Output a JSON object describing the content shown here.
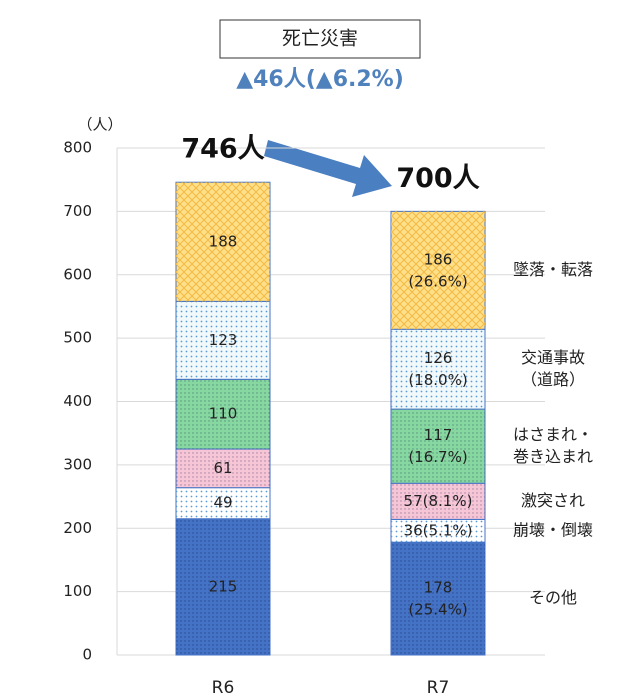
{
  "chart_data": {
    "type": "stacked_bar",
    "title": "死亡災害",
    "subtitle": "▲46人(▲6.2%)",
    "y_axis_label": "（人）",
    "categories": [
      "R6",
      "R7"
    ],
    "ylim": [
      0,
      800
    ],
    "yticks": [
      0,
      100,
      200,
      300,
      400,
      500,
      600,
      700,
      800
    ],
    "grid": true,
    "series": [
      {
        "name": "その他",
        "color": "#4472c4",
        "values": [
          215,
          178
        ],
        "value_labels": [
          "215",
          "178\n(25.4%)"
        ]
      },
      {
        "name": "崩壊・倒壊",
        "color": "#ffffff",
        "values": [
          49,
          36
        ],
        "value_labels": [
          "49",
          "36(5.1%)"
        ]
      },
      {
        "name": "激突され",
        "color": "#f7c6d6",
        "values": [
          61,
          57
        ],
        "value_labels": [
          "61",
          "57(8.1%)"
        ]
      },
      {
        "name": "はさまれ・\n巻き込まれ",
        "color": "#86d8a0",
        "values": [
          110,
          117
        ],
        "value_labels": [
          "110",
          "117\n(16.7%)"
        ]
      },
      {
        "name": "交通事故\n（道路）",
        "color": "#f2f9fb",
        "values": [
          123,
          126
        ],
        "value_labels": [
          "123",
          "126\n(18.0%)"
        ]
      },
      {
        "name": "墜落・転落",
        "color": "#ffe08a",
        "values": [
          188,
          186
        ],
        "value_labels": [
          "188",
          "186\n(26.6%)"
        ]
      }
    ],
    "totals": {
      "values": [
        746,
        700
      ],
      "value_labels": [
        "746人",
        "700人"
      ]
    }
  }
}
